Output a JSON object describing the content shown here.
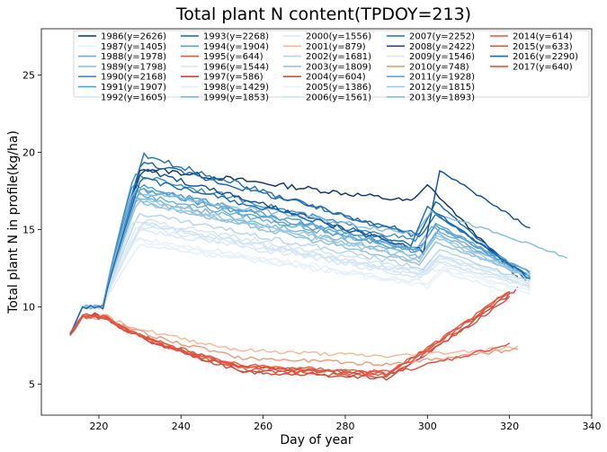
{
  "chart_data": {
    "type": "line",
    "title": "Total plant N content(TPDOY=213)",
    "xlabel": "Day of year",
    "ylabel": "Total plant N in profile(kg/ha)",
    "xlim": [
      206,
      340
    ],
    "ylim": [
      3,
      28
    ],
    "xticks": [
      220,
      240,
      260,
      280,
      300,
      320,
      340
    ],
    "yticks": [
      5,
      10,
      15,
      20,
      25
    ],
    "legend_position": "top",
    "legend_columns": 5,
    "series": [
      {
        "name": "1986(y=2626)",
        "color": "#08306b",
        "group": "blue",
        "end": 322,
        "peak": 19.0,
        "end_level": 16.8,
        "jump_day": 297,
        "jump_peak": 17.9,
        "final": 11.9
      },
      {
        "name": "1987(y=1405)",
        "color": "#e3eef9",
        "group": "blue",
        "end": 322,
        "peak": 14.0,
        "end_level": 11.6,
        "jump_day": 298,
        "jump_peak": 12.5,
        "final": 10.8
      },
      {
        "name": "1988(y=1978)",
        "color": "#6aaed6",
        "group": "blue",
        "end": 324,
        "peak": 17.3,
        "end_level": 13.6,
        "jump_day": 298,
        "jump_peak": 15.2,
        "final": 12.1
      },
      {
        "name": "1989(y=1798)",
        "color": "#8fbfdf",
        "group": "blue",
        "end": 322,
        "peak": 16.9,
        "end_level": 12.7,
        "jump_day": 299,
        "jump_peak": 14.2,
        "final": 12.3
      },
      {
        "name": "1990(y=2168)",
        "color": "#3d8dc4",
        "group": "blue",
        "end": 325,
        "peak": 18.6,
        "end_level": 14.2,
        "jump_day": 298,
        "jump_peak": 16.2,
        "final": 11.9
      },
      {
        "name": "1991(y=1907)",
        "color": "#4f9bcb",
        "group": "blue",
        "end": 325,
        "peak": 17.9,
        "end_level": 13.7,
        "jump_day": 299,
        "jump_peak": 15.3,
        "final": 12.0
      },
      {
        "name": "1992(y=1605)",
        "color": "#d4e4f4",
        "group": "blue",
        "end": 325,
        "peak": 15.6,
        "end_level": 12.3,
        "jump_day": 300,
        "jump_peak": 13.4,
        "final": 11.6
      },
      {
        "name": "1993(y=2268)",
        "color": "#1764ab",
        "group": "blue",
        "end": 324,
        "peak": 19.4,
        "end_level": 14.6,
        "jump_day": 299,
        "jump_peak": 16.8,
        "final": 11.8
      },
      {
        "name": "1994(y=1904)",
        "color": "#5aa2cf",
        "group": "blue",
        "end": 325,
        "peak": 17.6,
        "end_level": 13.4,
        "jump_day": 300,
        "jump_peak": 15.1,
        "final": 12.2
      },
      {
        "name": "1995(y=644)",
        "color": "#e25e43",
        "group": "red",
        "end": 320,
        "trough": 5.8,
        "final": 11.0
      },
      {
        "name": "1996(y=1544)",
        "color": "#dae8f6",
        "group": "blue",
        "end": 325,
        "peak": 15.2,
        "end_level": 12.1,
        "jump_day": 300,
        "jump_peak": 13.1,
        "final": 11.5
      },
      {
        "name": "1997(y=586)",
        "color": "#d0443a",
        "group": "red",
        "end": 322,
        "trough": 5.4,
        "final": 11.2
      },
      {
        "name": "1998(y=1429)",
        "color": "#e5eff9",
        "group": "blue",
        "end": 325,
        "peak": 14.5,
        "end_level": 11.5,
        "jump_day": 301,
        "jump_peak": 12.6,
        "final": 11.0
      },
      {
        "name": "1999(y=1853)",
        "color": "#77b5d9",
        "group": "blue",
        "end": 325,
        "peak": 17.2,
        "end_level": 13.2,
        "jump_day": 299,
        "jump_peak": 14.8,
        "final": 12.0
      },
      {
        "name": "2000(y=1556)",
        "color": "#d6e6f4",
        "group": "blue",
        "end": 325,
        "peak": 15.4,
        "end_level": 12.0,
        "jump_day": 298,
        "jump_peak": 13.0,
        "final": 11.4
      },
      {
        "name": "2001(y=879)",
        "color": "#f4b898",
        "group": "red",
        "end": 322,
        "trough": 6.8,
        "final": 7.4
      },
      {
        "name": "2002(y=1681)",
        "color": "#b7d4ea",
        "group": "blue",
        "end": 325,
        "peak": 16.1,
        "end_level": 12.5,
        "jump_day": 300,
        "jump_peak": 13.7,
        "final": 11.6
      },
      {
        "name": "2003(y=1809)",
        "color": "#94c4df",
        "group": "blue",
        "end": 325,
        "peak": 16.8,
        "end_level": 13.0,
        "jump_day": 299,
        "jump_peak": 14.5,
        "final": 11.8
      },
      {
        "name": "2004(y=604)",
        "color": "#d84c3e",
        "group": "red",
        "end": 320,
        "trough": 5.5,
        "final": 10.6
      },
      {
        "name": "2005(y=1386)",
        "color": "#e8f1fa",
        "group": "blue",
        "end": 325,
        "peak": 14.3,
        "end_level": 11.3,
        "jump_day": 301,
        "jump_peak": 12.4,
        "final": 10.9
      },
      {
        "name": "2006(y=1561)",
        "color": "#cfe1f2",
        "group": "blue",
        "end": 325,
        "peak": 15.5,
        "end_level": 12.1,
        "jump_day": 300,
        "jump_peak": 13.3,
        "final": 11.3
      },
      {
        "name": "2007(y=2252)",
        "color": "#2070b4",
        "group": "blue",
        "end": 324,
        "peak": 19.8,
        "end_level": 14.4,
        "jump_day": 299,
        "jump_peak": 16.0,
        "final": 12.1
      },
      {
        "name": "2008(y=2422)",
        "color": "#0b4d94",
        "group": "blue",
        "end": 325,
        "peak": 18.9,
        "end_level": 13.5,
        "jump_day": 300,
        "jump_peak": 18.8,
        "final": 15.1
      },
      {
        "name": "2009(y=1546)",
        "color": "#d9e7f5",
        "group": "blue",
        "end": 325,
        "peak": 15.0,
        "end_level": 11.9,
        "jump_day": 300,
        "jump_peak": 12.9,
        "final": 11.2
      },
      {
        "name": "2010(y=748)",
        "color": "#ee9a7c",
        "group": "red",
        "end": 322,
        "trough": 6.3,
        "final": 7.3
      },
      {
        "name": "2011(y=1928)",
        "color": "#5fa6d1",
        "group": "blue",
        "end": 325,
        "peak": 17.7,
        "end_level": 13.6,
        "jump_day": 299,
        "jump_peak": 15.4,
        "final": 12.2
      },
      {
        "name": "2012(y=1815)",
        "color": "#9cc8e1",
        "group": "blue",
        "end": 325,
        "peak": 17.0,
        "end_level": 13.1,
        "jump_day": 299,
        "jump_peak": 14.6,
        "final": 11.9
      },
      {
        "name": "2013(y=1893)",
        "color": "#85bcdc",
        "group": "blue",
        "end": 334,
        "peak": 17.5,
        "end_level": 14.7,
        "jump_day": 298,
        "jump_peak": 16.2,
        "final": 13.2
      },
      {
        "name": "2014(y=614)",
        "color": "#e0583f",
        "group": "red",
        "end": 320,
        "trough": 5.6,
        "final": 11.1
      },
      {
        "name": "2015(y=633)",
        "color": "#dc5240",
        "group": "red",
        "end": 320,
        "trough": 5.7,
        "final": 7.6
      },
      {
        "name": "2016(y=2290)",
        "color": "#1a68ae",
        "group": "blue",
        "end": 325,
        "peak": 18.3,
        "end_level": 14.0,
        "jump_day": 297,
        "jump_peak": 16.5,
        "final": 11.8
      },
      {
        "name": "2017(y=640)",
        "color": "#dd5642",
        "group": "red",
        "end": 320,
        "trough": 5.7,
        "final": 10.9
      }
    ]
  }
}
